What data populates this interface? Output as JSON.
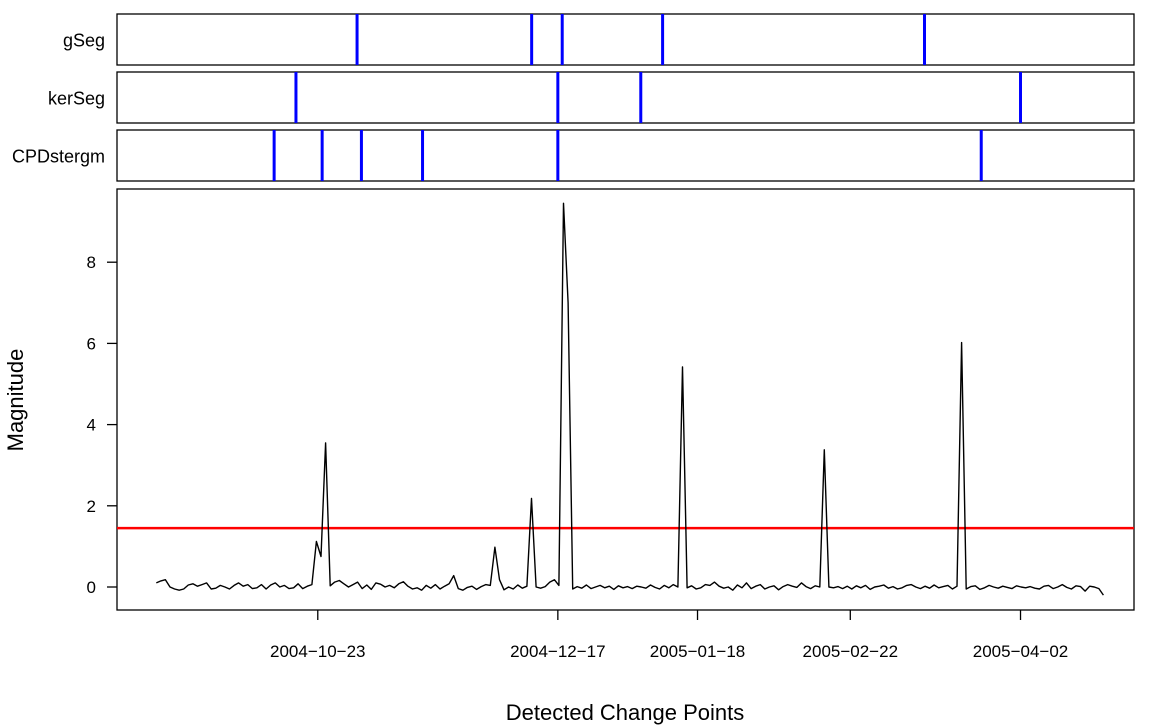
{
  "chart_data": {
    "type": "line",
    "xlabel": "Detected Change Points",
    "ylabel": "Magnitude",
    "x_range": [
      "2004-09-07",
      "2005-04-28"
    ],
    "ylim": [
      -0.55,
      9.85
    ],
    "y_ticks": [
      0,
      2,
      4,
      6,
      8
    ],
    "x_ticks": [
      "2004-10-23",
      "2004-12-17",
      "2005-01-18",
      "2005-02-22",
      "2005-04-02"
    ],
    "threshold": {
      "value": 1.45,
      "color": "#ff0000"
    },
    "rug_color": "#0000ff",
    "line_color": "#000000",
    "rug_panels": [
      {
        "label": "gSeg",
        "dates": [
          "2004-11-01",
          "2004-12-11",
          "2004-12-18",
          "2005-01-10",
          "2005-03-11"
        ]
      },
      {
        "label": "kerSeg",
        "dates": [
          "2004-10-18",
          "2004-12-17",
          "2005-01-05",
          "2005-04-02"
        ]
      },
      {
        "label": "CPDstergm",
        "dates": [
          "2004-10-13",
          "2004-10-24",
          "2004-11-02",
          "2004-11-16",
          "2004-12-17",
          "2005-03-24"
        ]
      }
    ],
    "series": [
      {
        "values": [
          0.1,
          0.15,
          0.18,
          0.0,
          -0.05,
          -0.08,
          -0.05,
          0.05,
          0.08,
          0.02,
          0.06,
          0.1,
          -0.05,
          -0.03,
          0.04,
          0.0,
          -0.05,
          0.04,
          0.1,
          0.02,
          0.06,
          -0.04,
          -0.02,
          0.06,
          -0.05,
          0.05,
          0.1,
          0.0,
          0.04,
          -0.04,
          -0.02,
          0.08,
          -0.04,
          0.02,
          0.06,
          1.12,
          0.75,
          3.55,
          0.03,
          0.12,
          0.16,
          0.08,
          0.0,
          0.06,
          0.12,
          -0.04,
          0.05,
          -0.06,
          0.1,
          0.07,
          0.0,
          0.04,
          -0.02,
          0.08,
          0.13,
          0.02,
          -0.05,
          -0.02,
          -0.08,
          0.04,
          -0.03,
          0.06,
          -0.05,
          0.02,
          0.08,
          0.28,
          -0.04,
          -0.08,
          -0.01,
          0.02,
          -0.06,
          0.01,
          0.06,
          0.04,
          0.98,
          0.18,
          -0.07,
          0.0,
          -0.05,
          0.05,
          -0.03,
          0.02,
          2.18,
          0.0,
          -0.03,
          0.01,
          0.12,
          0.18,
          0.04,
          9.45,
          7.0,
          -0.05,
          0.01,
          -0.03,
          0.05,
          -0.04,
          0.0,
          0.04,
          -0.02,
          0.02,
          -0.06,
          0.03,
          -0.02,
          0.01,
          -0.04,
          0.02,
          0.0,
          -0.03,
          0.05,
          -0.01,
          -0.05,
          0.04,
          -0.02,
          0.06,
          0.0,
          5.42,
          -0.02,
          0.03,
          -0.05,
          -0.02,
          0.06,
          0.04,
          0.12,
          0.02,
          -0.03,
          0.0,
          -0.08,
          0.05,
          -0.02,
          0.1,
          -0.04,
          0.02,
          0.06,
          -0.05,
          0.0,
          0.03,
          -0.07,
          0.01,
          0.06,
          0.02,
          -0.01,
          0.1,
          0.01,
          -0.04,
          0.03,
          0.0,
          3.38,
          0.0,
          -0.02,
          0.01,
          -0.04,
          0.02,
          -0.05,
          0.03,
          -0.02,
          0.04,
          -0.06,
          0.0,
          0.02,
          0.05,
          -0.03,
          0.01,
          -0.05,
          -0.02,
          0.04,
          0.06,
          0.0,
          -0.04,
          0.02,
          -0.03,
          0.05,
          -0.02,
          0.01,
          0.04,
          -0.05,
          0.02,
          6.02,
          -0.05,
          0.01,
          0.03,
          -0.06,
          -0.02,
          0.04,
          0.0,
          -0.03,
          0.02,
          -0.01,
          -0.04,
          0.03,
          0.0,
          -0.02,
          0.01,
          -0.03,
          -0.05,
          0.02,
          0.04,
          -0.04,
          0.0,
          0.06,
          -0.01,
          -0.05,
          0.03,
          0.01,
          -0.1,
          0.02,
          0.0,
          -0.04,
          -0.2
        ],
        "start_date": "2004-09-16",
        "end_date": "2005-04-21"
      }
    ]
  }
}
